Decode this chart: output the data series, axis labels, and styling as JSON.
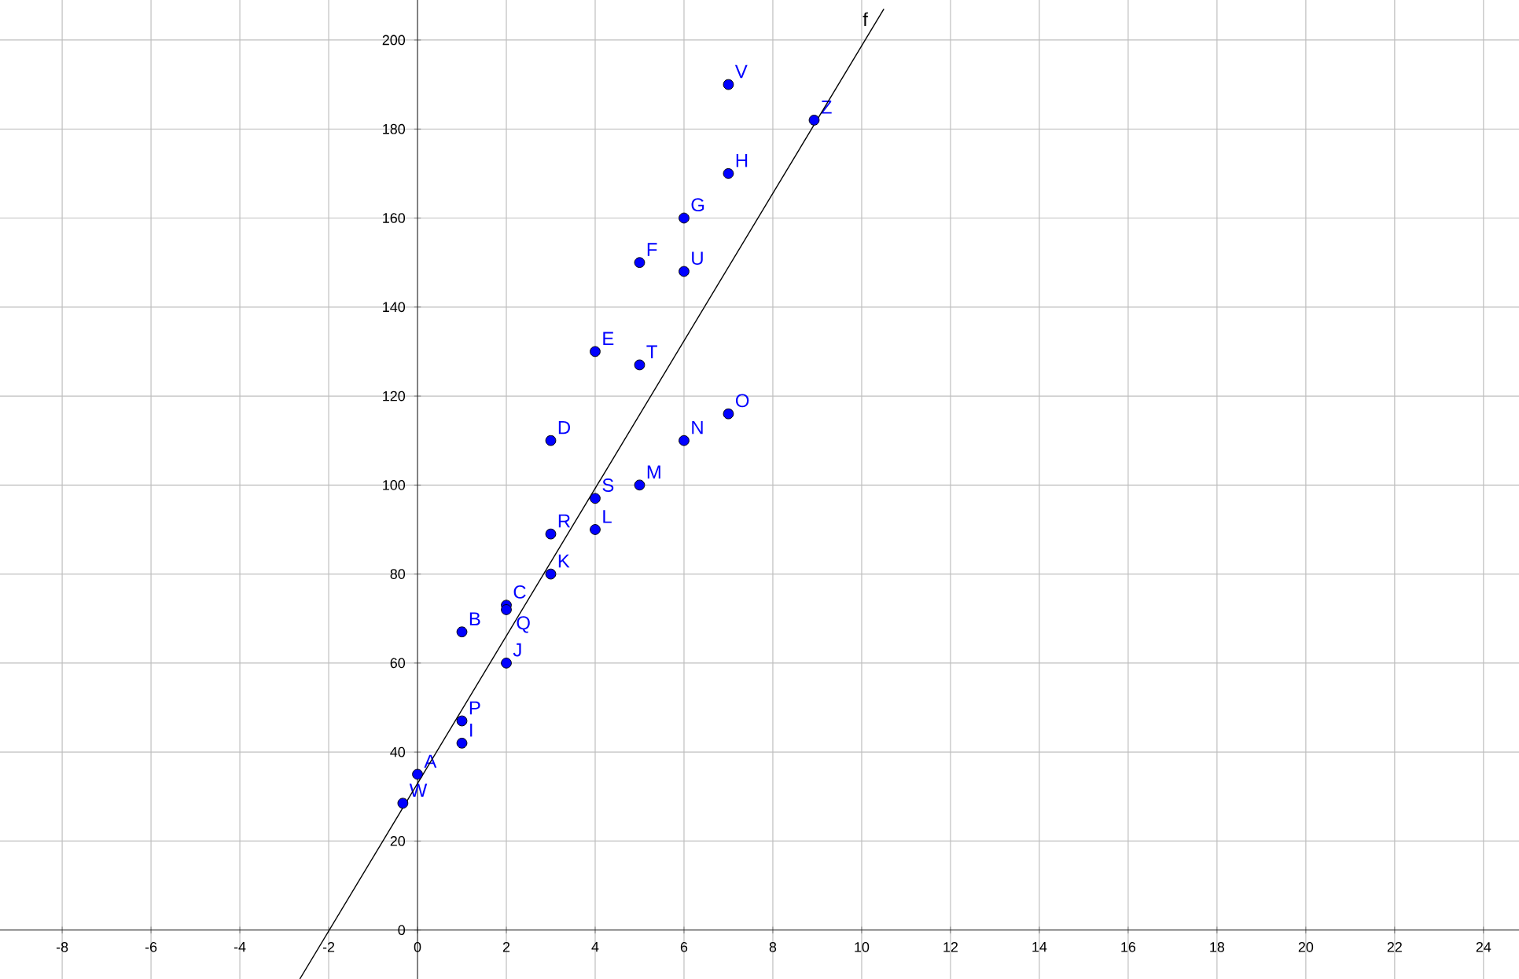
{
  "chart_data": {
    "type": "scatter",
    "xlim": [
      -9.4,
      24.8
    ],
    "ylim": [
      -11,
      209
    ],
    "xticks": [
      -8,
      -6,
      -4,
      -2,
      0,
      2,
      4,
      6,
      8,
      10,
      12,
      14,
      16,
      18,
      20,
      22,
      24
    ],
    "yticks": [
      0,
      20,
      40,
      60,
      80,
      100,
      120,
      140,
      160,
      180,
      200
    ],
    "grid": true,
    "series": [
      {
        "type": "scatter",
        "marker": "circle",
        "color": "#0000ff",
        "x": [
          0,
          1,
          2,
          3,
          4,
          5,
          6,
          7,
          1,
          2,
          3,
          4,
          5,
          6,
          7,
          1,
          2,
          3,
          4,
          5,
          6,
          7,
          -0.33,
          8.93
        ],
        "values": [
          35,
          67,
          73,
          110,
          130,
          150,
          160,
          170,
          42,
          60,
          80,
          90,
          100,
          110,
          116,
          47,
          72,
          89,
          97,
          127,
          148,
          190,
          28.5,
          182
        ],
        "value_labels": [
          "A",
          "B",
          "C",
          "D",
          "E",
          "F",
          "G",
          "H",
          "I",
          "J",
          "K",
          "L",
          "M",
          "N",
          "O",
          "P",
          "Q",
          "R",
          "S",
          "T",
          "U",
          "V",
          "W",
          "Z"
        ]
      },
      {
        "type": "line",
        "name": "f",
        "color": "#000000",
        "marker": "none",
        "x": [
          -2.65,
          10.5
        ],
        "values": [
          -11,
          207
        ]
      }
    ]
  }
}
